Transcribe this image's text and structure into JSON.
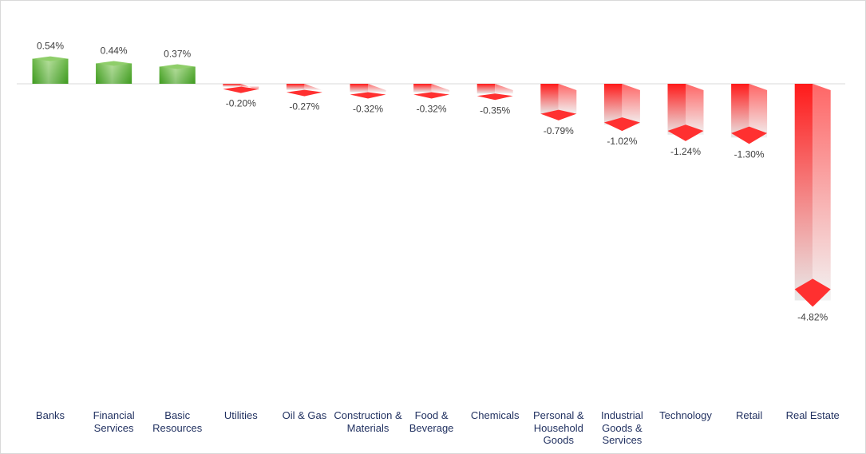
{
  "chart_data": {
    "type": "bar",
    "categories": [
      "Banks",
      "Financial Services",
      "Basic Resources",
      "Utilities",
      "Oil & Gas",
      "Construction & Materials",
      "Food & Beverage",
      "Chemicals",
      "Personal & Household Goods",
      "Industrial Goods & Services",
      "Technology",
      "Retail",
      "Real Estate"
    ],
    "values": [
      0.54,
      0.44,
      0.37,
      -0.2,
      -0.27,
      -0.32,
      -0.32,
      -0.35,
      -0.79,
      -1.02,
      -1.24,
      -1.3,
      -4.82
    ],
    "labels": [
      "0.54%",
      "0.44%",
      "0.37%",
      "-0.20%",
      "-0.27%",
      "-0.32%",
      "-0.32%",
      "-0.35%",
      "-0.79%",
      "-1.02%",
      "-1.24%",
      "-1.30%",
      "-4.82%"
    ],
    "title": "",
    "xlabel": "",
    "ylabel": "",
    "ylim": [
      -5.5,
      1.2
    ],
    "grid": false,
    "legend": "none",
    "colors": {
      "positive_top": "#8fce6a",
      "positive_bottom": "#3e9a1f",
      "positive_face_light": "#e4f3d8",
      "negative_top": "#ff1a1a",
      "negative_bottom": "#e9e9e9",
      "negative_tip": "#ff3030",
      "axis": "#d9d9d9"
    }
  }
}
